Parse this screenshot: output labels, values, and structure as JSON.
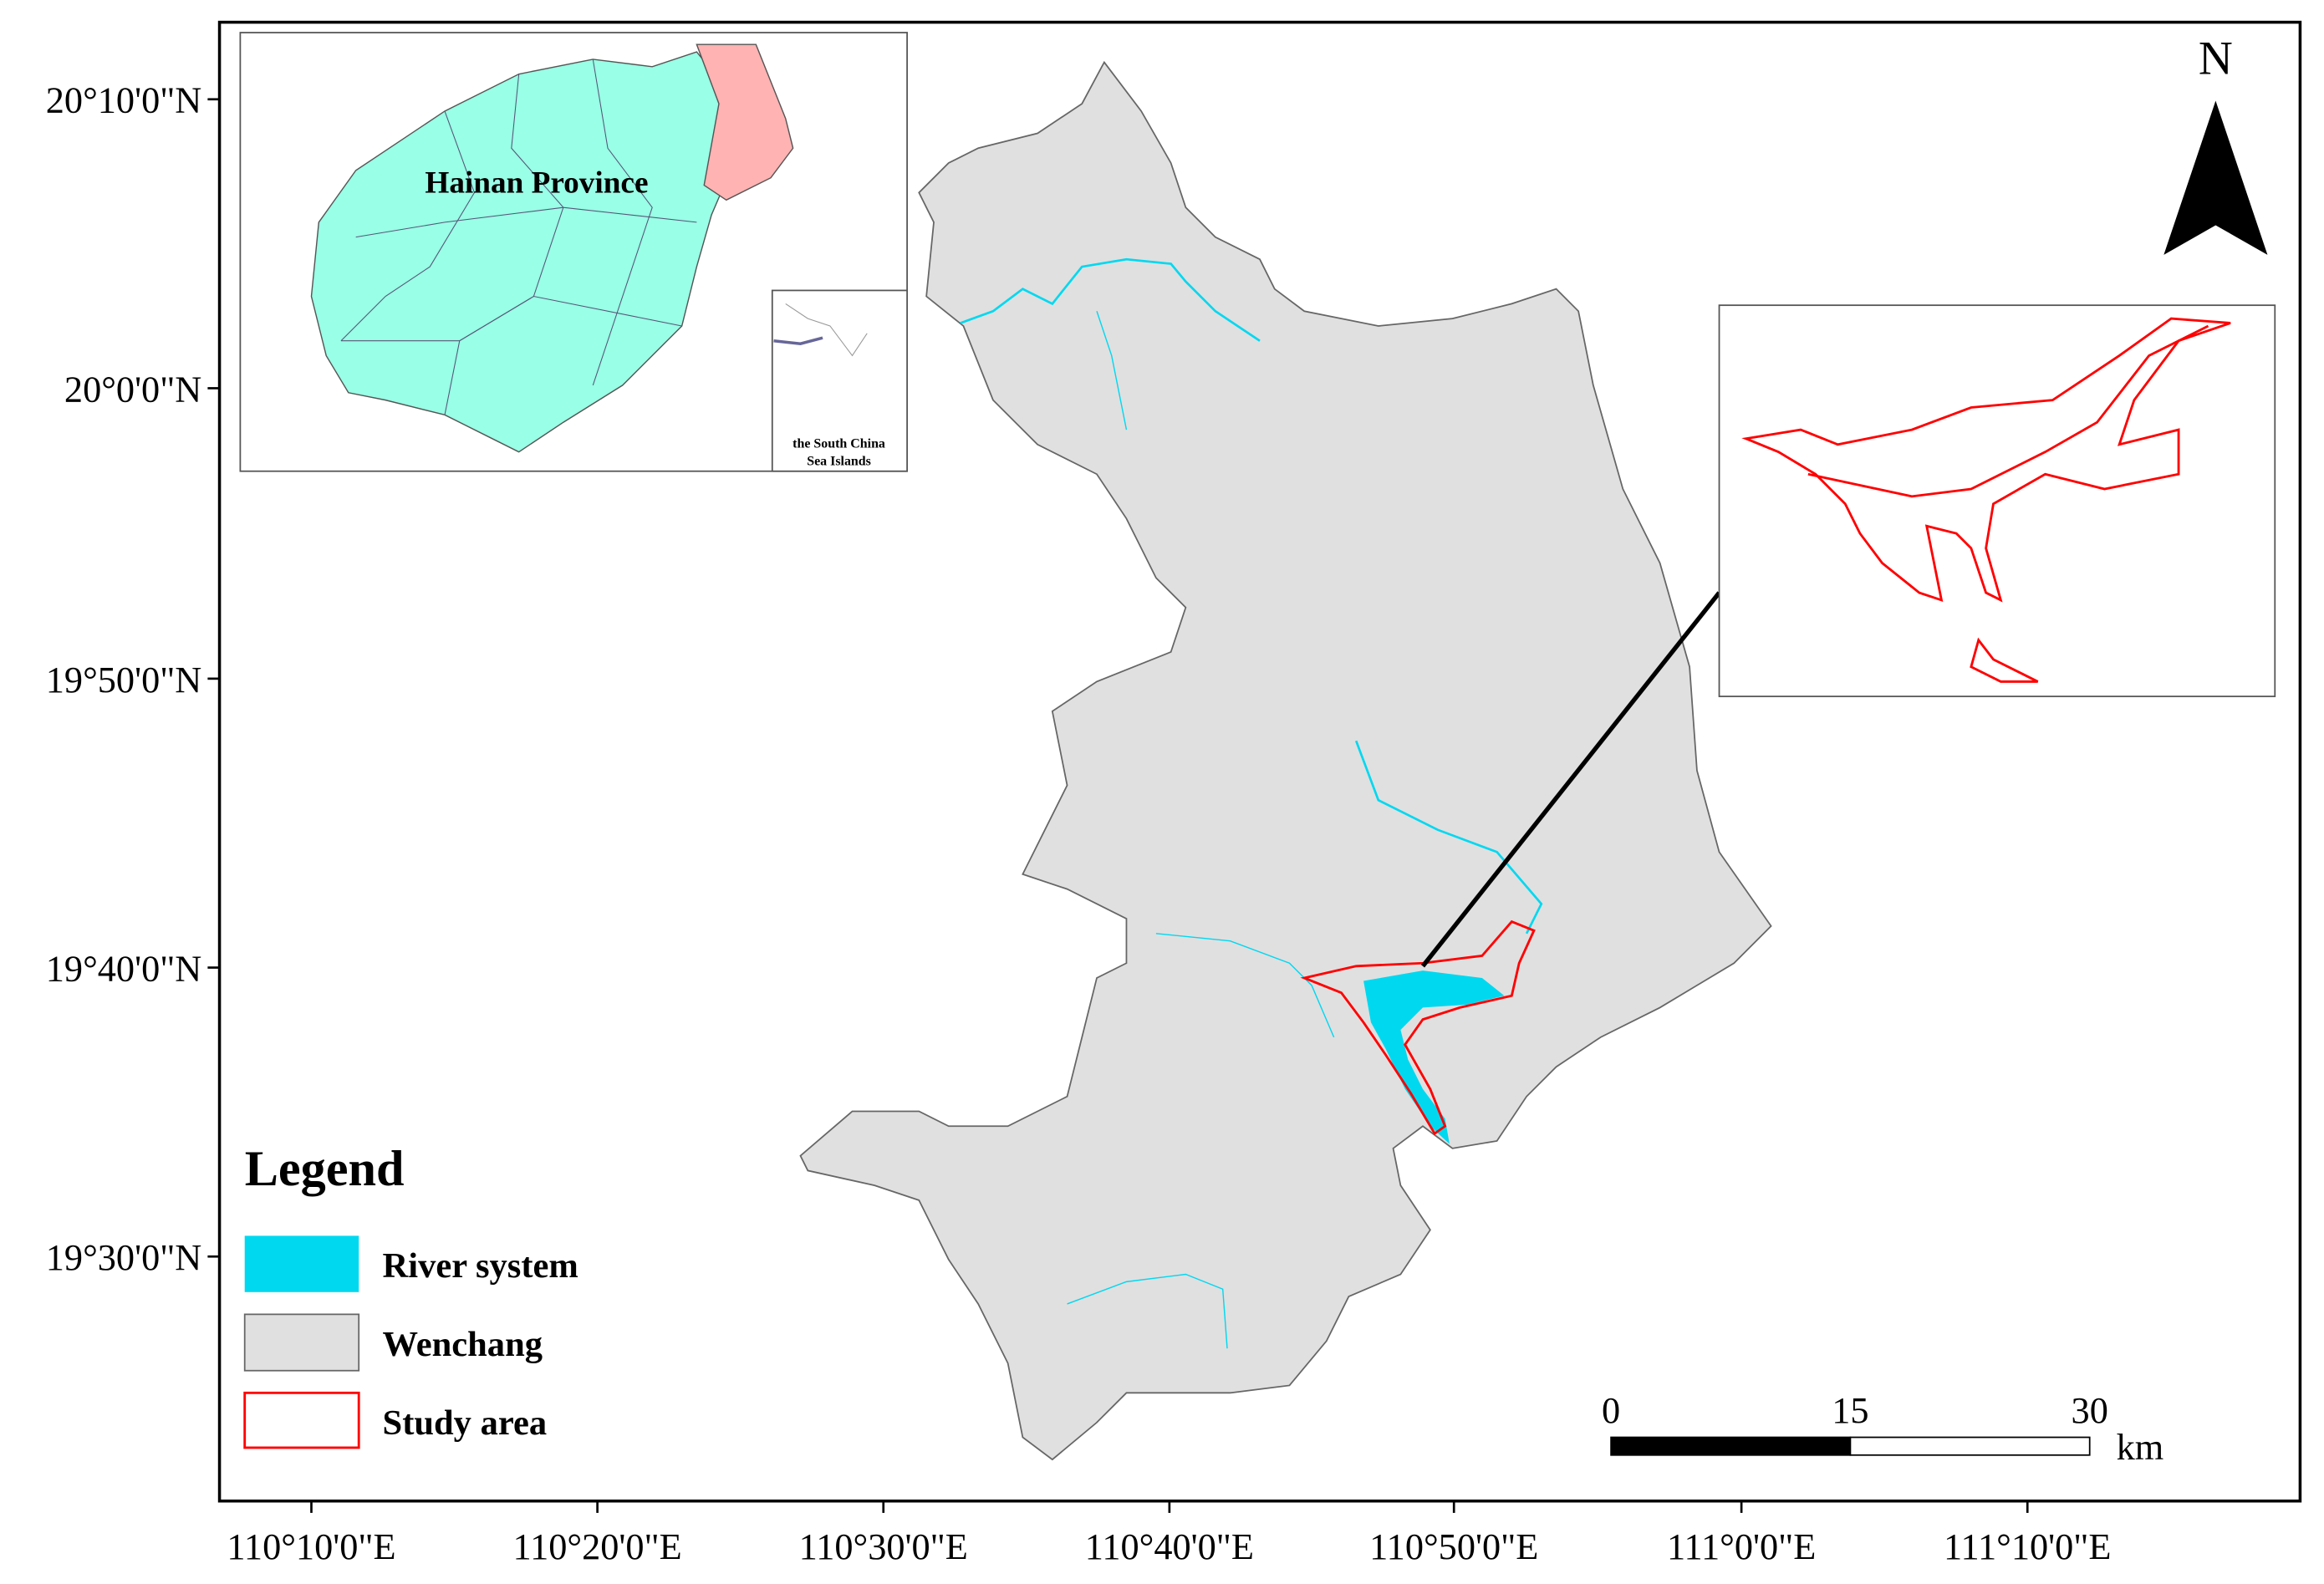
{
  "map": {
    "latitude_labels": [
      "20°10'0\"N",
      "20°0'0\"N",
      "19°50'0\"N",
      "19°40'0\"N",
      "19°30'0\"N"
    ],
    "longitude_labels": [
      "110°10'0\"E",
      "110°20'0\"E",
      "110°30'0\"E",
      "110°40'0\"E",
      "110°50'0\"E",
      "111°0'0\"E",
      "111°10'0\"E"
    ],
    "north_label": "N",
    "inset": {
      "label": "Hainan Province",
      "sub_inset_label": [
        "the South China",
        "Sea Islands"
      ]
    },
    "legend": {
      "title": "Legend",
      "items": [
        "River system",
        "Wenchang",
        "Study area"
      ]
    },
    "scale_bar": {
      "ticks": [
        0,
        15,
        30
      ],
      "unit": "km"
    }
  }
}
